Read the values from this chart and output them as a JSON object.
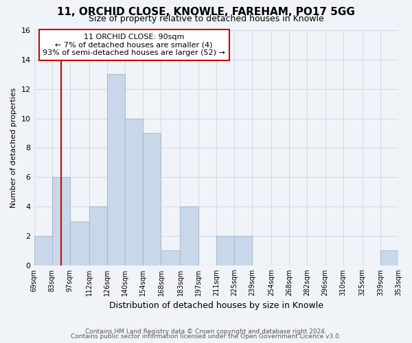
{
  "title": "11, ORCHID CLOSE, KNOWLE, FAREHAM, PO17 5GG",
  "subtitle": "Size of property relative to detached houses in Knowle",
  "xlabel": "Distribution of detached houses by size in Knowle",
  "ylabel": "Number of detached properties",
  "bin_edges": [
    69,
    83,
    97,
    112,
    126,
    140,
    154,
    168,
    183,
    197,
    211,
    225,
    239,
    254,
    268,
    282,
    296,
    310,
    325,
    339,
    353
  ],
  "bin_labels": [
    "69sqm",
    "83sqm",
    "97sqm",
    "112sqm",
    "126sqm",
    "140sqm",
    "154sqm",
    "168sqm",
    "183sqm",
    "197sqm",
    "211sqm",
    "225sqm",
    "239sqm",
    "254sqm",
    "268sqm",
    "282sqm",
    "296sqm",
    "310sqm",
    "325sqm",
    "339sqm",
    "353sqm"
  ],
  "counts": [
    2,
    6,
    3,
    4,
    13,
    10,
    9,
    1,
    4,
    0,
    2,
    2,
    0,
    0,
    0,
    0,
    0,
    0,
    0,
    1
  ],
  "bar_color": "#c8d8ea",
  "bar_edgecolor": "#aabcce",
  "property_line_x": 90,
  "property_line_color": "#cc0000",
  "annotation_line1": "11 ORCHID CLOSE: 90sqm",
  "annotation_line2": "← 7% of detached houses are smaller (4)",
  "annotation_line3": "93% of semi-detached houses are larger (52) →",
  "annotation_box_color": "#ffffff",
  "annotation_box_edgecolor": "#cc0000",
  "ylim": [
    0,
    16
  ],
  "yticks": [
    0,
    2,
    4,
    6,
    8,
    10,
    12,
    14,
    16
  ],
  "footer_line1": "Contains HM Land Registry data © Crown copyright and database right 2024.",
  "footer_line2": "Contains public sector information licensed under the Open Government Licence v3.0.",
  "bg_color": "#f0f4f8",
  "grid_color": "#d0dce8",
  "title_fontsize": 11,
  "subtitle_fontsize": 9
}
